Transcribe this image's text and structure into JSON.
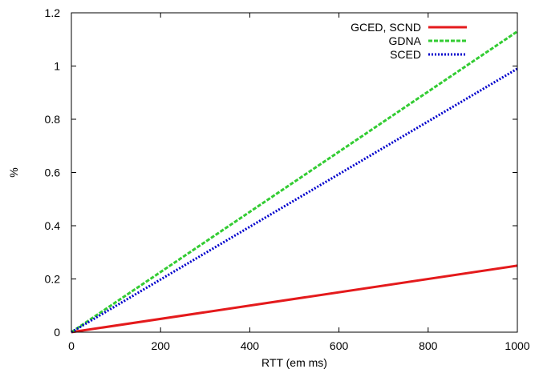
{
  "chart_data": {
    "type": "line",
    "xlabel": "RTT (em ms)",
    "ylabel": "%",
    "xlim": [
      0,
      1000
    ],
    "ylim": [
      0,
      1.2
    ],
    "x_ticks": [
      0,
      200,
      400,
      600,
      800,
      1000
    ],
    "y_ticks": [
      0,
      0.2,
      0.4,
      0.6,
      0.8,
      1,
      1.2
    ],
    "x_tick_labels": [
      "0",
      "200",
      "400",
      "600",
      "800",
      "1000"
    ],
    "y_tick_labels": [
      "0",
      "0.2",
      "0.4",
      "0.6",
      "0.8",
      "1",
      "1.2"
    ],
    "grid": false,
    "legend_position": "top-right",
    "series": [
      {
        "name": "GCED, SCND",
        "color": "#e41a1c",
        "style": "solid",
        "x": [
          0,
          1000
        ],
        "y": [
          0,
          0.25
        ]
      },
      {
        "name": "GDNA",
        "color": "#33cc33",
        "style": "dashed",
        "x": [
          0,
          1000
        ],
        "y": [
          0,
          1.13
        ]
      },
      {
        "name": "SCED",
        "color": "#0000cc",
        "style": "dotted",
        "x": [
          0,
          1000
        ],
        "y": [
          0,
          0.99
        ]
      }
    ]
  }
}
